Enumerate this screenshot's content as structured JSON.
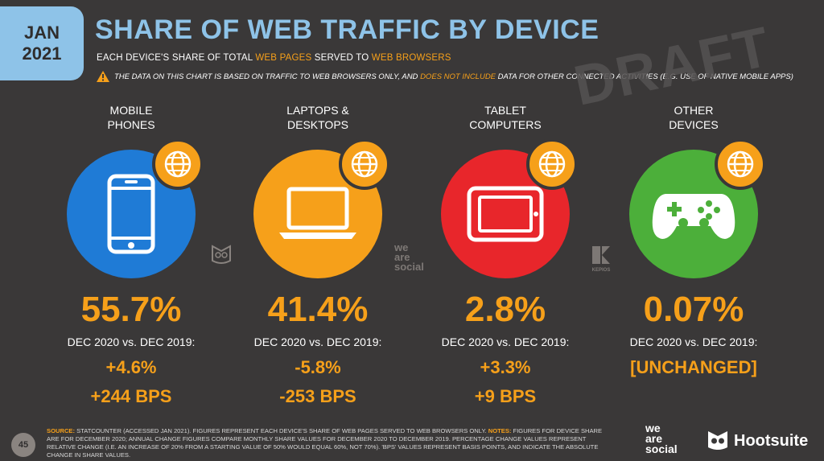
{
  "badge": {
    "month": "JAN",
    "year": "2021"
  },
  "title": "SHARE OF WEB TRAFFIC BY DEVICE",
  "subtitle": {
    "part1": "EACH DEVICE'S SHARE OF TOTAL ",
    "hl1": "WEB PAGES",
    "part2": " SERVED TO ",
    "hl2": "WEB BROWSERS"
  },
  "note": {
    "part1": "THE DATA ON THIS CHART IS BASED ON TRAFFIC TO WEB BROWSERS ONLY, AND ",
    "hl": "DOES NOT INCLUDE",
    "part2": " DATA FOR OTHER CONNECTED ACTIVITIES (E.G. USE OF NATIVE MOBILE APPS)"
  },
  "watermark": "DRAFT",
  "devices": [
    {
      "label1": "MOBILE",
      "label2": "PHONES",
      "share": "55.7%",
      "compare": "DEC 2020 vs. DEC 2019:",
      "change_rel": "+4.6%",
      "change_bps": "+244 BPS",
      "color": "#1f7bd6",
      "icon": "smartphone-icon"
    },
    {
      "label1": "LAPTOPS &",
      "label2": "DESKTOPS",
      "share": "41.4%",
      "compare": "DEC 2020 vs. DEC 2019:",
      "change_rel": "-5.8%",
      "change_bps": "-253 BPS",
      "color": "#f6a01a",
      "icon": "laptop-icon"
    },
    {
      "label1": "TABLET",
      "label2": "COMPUTERS",
      "share": "2.8%",
      "compare": "DEC 2020 vs. DEC 2019:",
      "change_rel": "+3.3%",
      "change_bps": "+9 BPS",
      "color": "#e8262b",
      "icon": "tablet-icon"
    },
    {
      "label1": "OTHER",
      "label2": "DEVICES",
      "share": "0.07%",
      "compare": "DEC 2020 vs. DEC 2019:",
      "change_rel": "[UNCHANGED]",
      "change_bps": "",
      "color": "#4caf3a",
      "icon": "gamepad-icon"
    }
  ],
  "footer": {
    "source_label": "SOURCE:",
    "source_text": " STATCOUNTER (ACCESSED JAN 2021). FIGURES REPRESENT EACH DEVICE'S SHARE OF WEB PAGES SERVED TO WEB BROWSERS ONLY. ",
    "notes_label": "NOTES:",
    "notes_text": " FIGURES FOR DEVICE SHARE ARE FOR DECEMBER 2020; ANNUAL CHANGE FIGURES COMPARE MONTHLY SHARE VALUES FOR DECEMBER 2020 TO DECEMBER 2019. PERCENTAGE CHANGE VALUES REPRESENT RELATIVE CHANGE (I.E. AN INCREASE OF 20% FROM A STARTING VALUE OF 50% WOULD EQUAL 60%, NOT 70%). 'BPS' VALUES REPRESENT BASIS POINTS, AND INDICATE THE ABSOLUTE CHANGE IN SHARE VALUES.",
    "page": "45",
    "brand1_l1": "we",
    "brand1_l2": "are",
    "brand1_l3": "social",
    "brand2": "Hootsuite",
    "kepios": "KEPIOS"
  }
}
